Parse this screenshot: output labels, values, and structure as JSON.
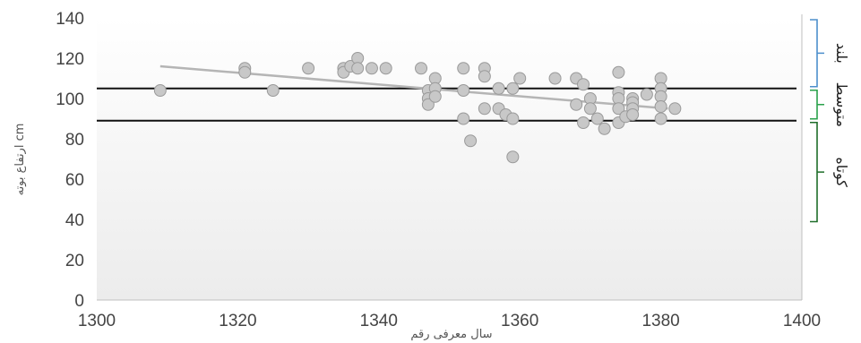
{
  "chart_data": {
    "type": "scatter",
    "xlabel": "سال معرفی رقم",
    "ylabel": "ارتفاع بوته cm",
    "xlim": [
      1300,
      1400
    ],
    "ylim": [
      0,
      140
    ],
    "x_ticks": [
      "1300",
      "1320",
      "1340",
      "1360",
      "1380",
      "1400"
    ],
    "y_ticks": [
      "0",
      "20",
      "40",
      "60",
      "80",
      "100",
      "120",
      "140"
    ],
    "grid": false,
    "points": [
      [
        1309,
        104
      ],
      [
        1321,
        115
      ],
      [
        1321,
        113
      ],
      [
        1325,
        104
      ],
      [
        1330,
        115
      ],
      [
        1335,
        115
      ],
      [
        1335,
        113
      ],
      [
        1336,
        116
      ],
      [
        1337,
        120
      ],
      [
        1337,
        115
      ],
      [
        1339,
        115
      ],
      [
        1341,
        115
      ],
      [
        1346,
        115
      ],
      [
        1347,
        104
      ],
      [
        1347,
        100
      ],
      [
        1347,
        97
      ],
      [
        1348,
        110
      ],
      [
        1348,
        105
      ],
      [
        1348,
        101
      ],
      [
        1352,
        115
      ],
      [
        1352,
        104
      ],
      [
        1352,
        90
      ],
      [
        1353,
        79
      ],
      [
        1355,
        115
      ],
      [
        1355,
        111
      ],
      [
        1355,
        95
      ],
      [
        1357,
        105
      ],
      [
        1357,
        95
      ],
      [
        1358,
        92
      ],
      [
        1359,
        105
      ],
      [
        1359,
        90
      ],
      [
        1359,
        71
      ],
      [
        1360,
        110
      ],
      [
        1365,
        110
      ],
      [
        1368,
        110
      ],
      [
        1368,
        97
      ],
      [
        1369,
        107
      ],
      [
        1369,
        88
      ],
      [
        1370,
        100
      ],
      [
        1370,
        95
      ],
      [
        1371,
        90
      ],
      [
        1372,
        85
      ],
      [
        1374,
        113
      ],
      [
        1374,
        103
      ],
      [
        1374,
        100
      ],
      [
        1374,
        95
      ],
      [
        1374,
        88
      ],
      [
        1375,
        91
      ],
      [
        1376,
        100
      ],
      [
        1376,
        98
      ],
      [
        1376,
        95
      ],
      [
        1376,
        92
      ],
      [
        1378,
        102
      ],
      [
        1380,
        110
      ],
      [
        1380,
        105
      ],
      [
        1380,
        101
      ],
      [
        1380,
        96
      ],
      [
        1380,
        90
      ],
      [
        1382,
        95
      ]
    ],
    "trendline": {
      "x": [
        1309,
        1381
      ],
      "y": [
        116,
        95
      ]
    },
    "thresholds": [
      105,
      89
    ],
    "bands": [
      {
        "label": "بلند",
        "range": [
          105,
          140
        ],
        "color": "#4d8fcc"
      },
      {
        "label": "متوسط",
        "range": [
          89,
          105
        ],
        "color": "#2aa14b"
      },
      {
        "label": "کوتاه",
        "range": [
          38,
          89
        ],
        "color": "#1f6e2a"
      }
    ],
    "colors": {
      "points": "#c8c8c8",
      "point_stroke": "#9a9a9a",
      "trendline": "#b5b5b5",
      "threshold": "#111111",
      "axis": "#bfbfbf"
    }
  }
}
